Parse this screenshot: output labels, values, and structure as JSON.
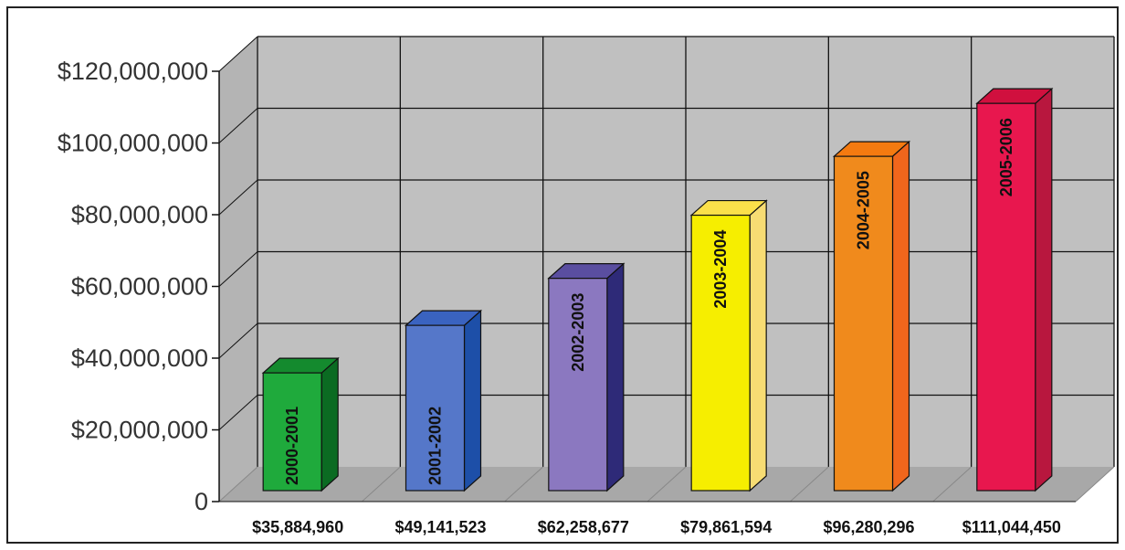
{
  "chart_data": {
    "type": "bar",
    "categories": [
      "2000-2001",
      "2001-2002",
      "2002-2003",
      "2003-2004",
      "2004-2005",
      "2005-2006"
    ],
    "values": [
      35884960,
      49141523,
      62258677,
      79861594,
      96280296,
      111044450
    ],
    "value_labels": [
      "$35,884,960",
      "$49,141,523",
      "$62,258,677",
      "$79,861,594",
      "$96,280,296",
      "$111,044,450"
    ],
    "y_tick_values": [
      0,
      20000000,
      40000000,
      60000000,
      80000000,
      100000000,
      120000000
    ],
    "y_tick_labels": [
      "0",
      "$20,000,000",
      "$40,000,000",
      "$60,000,000",
      "$80,000,000",
      "$100,000,000",
      "$120,000,000"
    ],
    "ylim": [
      0,
      120000000
    ],
    "grid": true,
    "style": "3d-column",
    "title": "",
    "xlabel": "",
    "ylabel": "",
    "colors": [
      {
        "front": "#1faa3c",
        "side": "#0b6b22",
        "top": "#148a2e"
      },
      {
        "front": "#5577c9",
        "side": "#1d4fa8",
        "top": "#3a63c0"
      },
      {
        "front": "#8b78c0",
        "side": "#2e2a78",
        "top": "#5a4ea0"
      },
      {
        "front": "#f6ee00",
        "side": "#f7dc73",
        "top": "#fbe04a"
      },
      {
        "front": "#f08a1c",
        "side": "#f0661c",
        "top": "#f47a10"
      },
      {
        "front": "#e8174e",
        "side": "#b8173e",
        "top": "#d0103e"
      }
    ],
    "background": {
      "wall": "#c0c0c0",
      "floor": "#a8a8a8",
      "grid_line": "#111111"
    }
  }
}
